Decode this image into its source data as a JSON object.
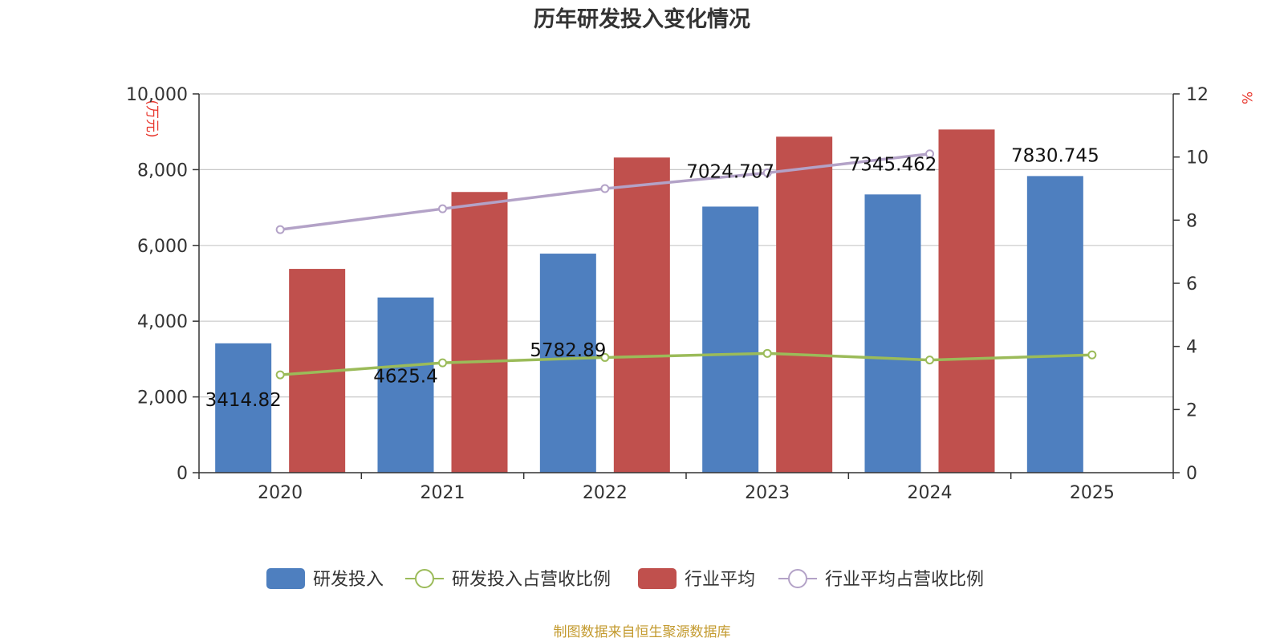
{
  "chart_data": {
    "type": "bar",
    "title": "历年研发投入变化情况",
    "categories": [
      "2020",
      "2021",
      "2022",
      "2023",
      "2024",
      "2025"
    ],
    "y_left": {
      "unit": "(万元)",
      "ylim": [
        0,
        10000
      ],
      "ticks": [
        0,
        2000,
        4000,
        6000,
        8000,
        10000
      ],
      "tick_labels": [
        "0",
        "2,000",
        "4,000",
        "6,000",
        "8,000",
        "10,000"
      ]
    },
    "y_right": {
      "unit": "%",
      "ylim": [
        0,
        12
      ],
      "ticks": [
        0,
        2,
        4,
        6,
        8,
        10,
        12
      ],
      "tick_labels": [
        "0",
        "2",
        "4",
        "6",
        "8",
        "10",
        "12"
      ]
    },
    "series": [
      {
        "name": "研发投入",
        "type": "bar",
        "axis": "left",
        "color": "#4e7fbf",
        "values": [
          3414.82,
          4625.4,
          5782.89,
          7024.707,
          7345.462,
          7830.745
        ],
        "labels": [
          "3414.82",
          "4625.4",
          "5782.89",
          "7024.707",
          "7345.462",
          "7830.745"
        ]
      },
      {
        "name": "研发投入占营收比例",
        "type": "line",
        "axis": "right",
        "color": "#9bbb59",
        "values": [
          3.1,
          3.48,
          3.65,
          3.78,
          3.57,
          3.73
        ]
      },
      {
        "name": "行业平均",
        "type": "bar",
        "axis": "left",
        "color": "#c0504d",
        "values": [
          5380,
          7410,
          8320,
          8870,
          9060,
          null
        ]
      },
      {
        "name": "行业平均占营收比例",
        "type": "line",
        "axis": "right",
        "color": "#b3a2c7",
        "values": [
          7.7,
          8.36,
          9.0,
          9.5,
          10.1,
          null
        ]
      }
    ],
    "legend": "bottom-center",
    "grid": true
  },
  "source_text": "制图数据来自恒生聚源数据库"
}
